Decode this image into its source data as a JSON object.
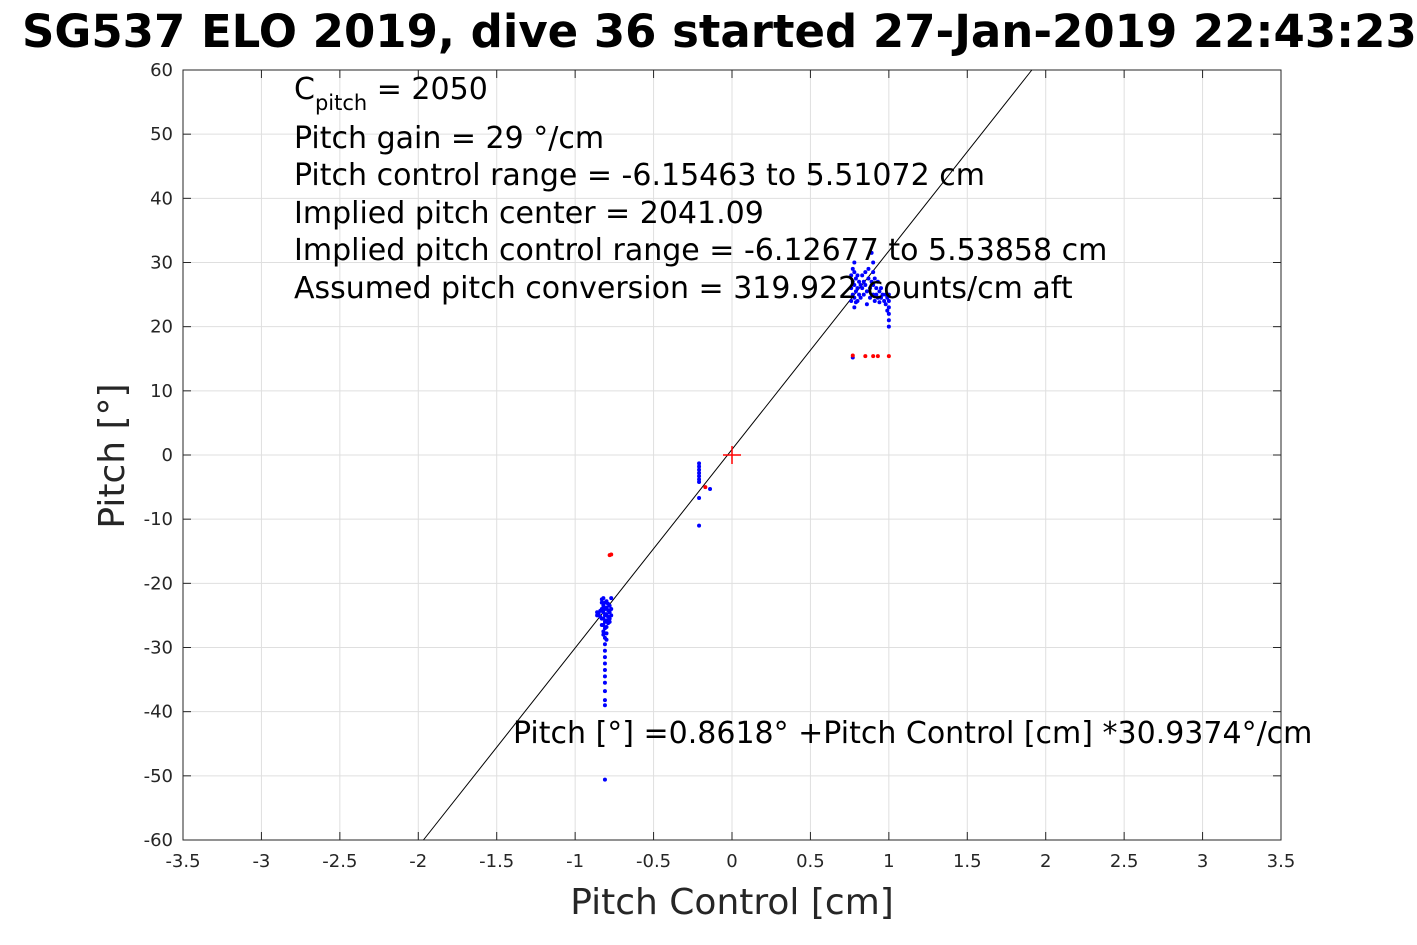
{
  "chart_data": {
    "type": "scatter",
    "title": "SG537 ELO 2019, dive 36 started 27-Jan-2019 22:43:23",
    "xlabel": "Pitch Control [cm]",
    "ylabel": "Pitch [°]",
    "xlim": [
      -3.5,
      3.5
    ],
    "ylim": [
      -60,
      60
    ],
    "xticks": [
      -3.5,
      -3,
      -2.5,
      -2,
      -1.5,
      -1,
      -0.5,
      0,
      0.5,
      1,
      1.5,
      2,
      2.5,
      3,
      3.5
    ],
    "yticks": [
      -60,
      -50,
      -40,
      -30,
      -20,
      -10,
      0,
      10,
      20,
      30,
      40,
      50,
      60
    ],
    "xtick_labels": [
      "-3.5",
      "-3",
      "-2.5",
      "-2",
      "-1.5",
      "-1",
      "-0.5",
      "0",
      "0.5",
      "1",
      "1.5",
      "2",
      "2.5",
      "3",
      "3.5"
    ],
    "ytick_labels": [
      "-60",
      "-50",
      "-40",
      "-30",
      "-20",
      "-10",
      "0",
      "10",
      "20",
      "30",
      "40",
      "50",
      "60"
    ],
    "grid": true,
    "fit_line": {
      "intercept": 0.8618,
      "slope": 30.9374,
      "color": "#000000"
    },
    "center_marker": {
      "x": 0,
      "y": 0,
      "color": "#ff0000",
      "shape": "plus"
    },
    "series": [
      {
        "color": "#0000ff",
        "points": [
          [
            -0.86,
            -24.5
          ],
          [
            -0.86,
            -25.0
          ],
          [
            -0.85,
            -24.8
          ],
          [
            -0.84,
            -24.3
          ],
          [
            -0.84,
            -25.2
          ],
          [
            -0.83,
            -23.0
          ],
          [
            -0.83,
            -24.0
          ],
          [
            -0.83,
            -25.5
          ],
          [
            -0.83,
            -26.5
          ],
          [
            -0.83,
            -22.5
          ],
          [
            -0.82,
            -23.5
          ],
          [
            -0.82,
            -24.5
          ],
          [
            -0.82,
            -25.5
          ],
          [
            -0.82,
            -26.5
          ],
          [
            -0.82,
            -27.5
          ],
          [
            -0.82,
            -28.0
          ],
          [
            -0.82,
            -22.3
          ],
          [
            -0.81,
            -23.0
          ],
          [
            -0.81,
            -24.0
          ],
          [
            -0.81,
            -25.0
          ],
          [
            -0.81,
            -26.0
          ],
          [
            -0.81,
            -27.0
          ],
          [
            -0.81,
            -28.5
          ],
          [
            -0.81,
            -29.5
          ],
          [
            -0.81,
            -30.5
          ],
          [
            -0.81,
            -31.5
          ],
          [
            -0.81,
            -32.5
          ],
          [
            -0.81,
            -33.5
          ],
          [
            -0.81,
            -34.5
          ],
          [
            -0.81,
            -35.5
          ],
          [
            -0.81,
            -36.8
          ],
          [
            -0.81,
            -38.2
          ],
          [
            -0.81,
            -39.0
          ],
          [
            -0.81,
            -50.6
          ],
          [
            -0.8,
            -22.8
          ],
          [
            -0.8,
            -23.8
          ],
          [
            -0.8,
            -24.8
          ],
          [
            -0.8,
            -25.8
          ],
          [
            -0.8,
            -26.8
          ],
          [
            -0.8,
            -27.8
          ],
          [
            -0.8,
            -28.8
          ],
          [
            -0.79,
            -24.2
          ],
          [
            -0.79,
            -25.2
          ],
          [
            -0.79,
            -26.2
          ],
          [
            -0.79,
            -23.2
          ],
          [
            -0.78,
            -24.5
          ],
          [
            -0.78,
            -25.5
          ],
          [
            -0.78,
            -23.5
          ],
          [
            -0.78,
            -26.0
          ],
          [
            -0.77,
            -22.3
          ],
          [
            -0.77,
            -24.0
          ],
          [
            -0.77,
            -25.0
          ],
          [
            -0.21,
            -1.3
          ],
          [
            -0.21,
            -1.8
          ],
          [
            -0.21,
            -2.3
          ],
          [
            -0.21,
            -2.8
          ],
          [
            -0.21,
            -3.3
          ],
          [
            -0.21,
            -3.8
          ],
          [
            -0.21,
            -4.2
          ],
          [
            -0.21,
            -6.7
          ],
          [
            -0.21,
            -11.0
          ],
          [
            -0.14,
            -5.3
          ],
          [
            0.76,
            24.0
          ],
          [
            0.76,
            26.0
          ],
          [
            0.76,
            28.0
          ],
          [
            0.77,
            29.0
          ],
          [
            0.77,
            27.0
          ],
          [
            0.77,
            25.0
          ],
          [
            0.77,
            15.2
          ],
          [
            0.78,
            30.0
          ],
          [
            0.78,
            28.5
          ],
          [
            0.78,
            26.5
          ],
          [
            0.78,
            24.5
          ],
          [
            0.78,
            23.0
          ],
          [
            0.79,
            27.5
          ],
          [
            0.79,
            25.5
          ],
          [
            0.79,
            23.8
          ],
          [
            0.8,
            28.0
          ],
          [
            0.8,
            26.0
          ],
          [
            0.8,
            24.0
          ],
          [
            0.81,
            27.0
          ],
          [
            0.81,
            25.0
          ],
          [
            0.82,
            26.5
          ],
          [
            0.82,
            24.5
          ],
          [
            0.83,
            28.0
          ],
          [
            0.83,
            26.0
          ],
          [
            0.84,
            25.0
          ],
          [
            0.84,
            27.0
          ],
          [
            0.85,
            28.5
          ],
          [
            0.85,
            26.5
          ],
          [
            0.86,
            25.5
          ],
          [
            0.86,
            23.5
          ],
          [
            0.87,
            27.5
          ],
          [
            0.87,
            29.0
          ],
          [
            0.88,
            26.0
          ],
          [
            0.88,
            24.5
          ],
          [
            0.89,
            27.0
          ],
          [
            0.89,
            31.5
          ],
          [
            0.9,
            30.0
          ],
          [
            0.9,
            28.5
          ],
          [
            0.9,
            26.5
          ],
          [
            0.9,
            25.0
          ],
          [
            0.91,
            27.5
          ],
          [
            0.91,
            24.0
          ],
          [
            0.92,
            26.0
          ],
          [
            0.92,
            25.0
          ],
          [
            0.93,
            27.0
          ],
          [
            0.93,
            24.5
          ],
          [
            0.94,
            25.5
          ],
          [
            0.94,
            23.8
          ],
          [
            0.95,
            26.0
          ],
          [
            0.95,
            24.5
          ],
          [
            0.96,
            25.0
          ],
          [
            0.97,
            24.0
          ],
          [
            0.98,
            25.0
          ],
          [
            0.98,
            23.5
          ],
          [
            0.99,
            24.5
          ],
          [
            0.99,
            22.5
          ],
          [
            1.0,
            24.0
          ],
          [
            1.0,
            23.0
          ],
          [
            1.0,
            22.0
          ],
          [
            1.0,
            21.0
          ],
          [
            1.0,
            20.0
          ],
          [
            1.0,
            25.0
          ]
        ]
      },
      {
        "color": "#ff0000",
        "points": [
          [
            -0.78,
            -15.6
          ],
          [
            -0.77,
            -15.5
          ],
          [
            -0.17,
            -5.0
          ],
          [
            0.77,
            15.5
          ],
          [
            0.85,
            15.4
          ],
          [
            0.9,
            15.4
          ],
          [
            0.93,
            15.4
          ],
          [
            1.0,
            15.4
          ]
        ]
      }
    ],
    "annotations": {
      "cpitch_prefix": "C",
      "cpitch_sub": "pitch",
      "cpitch_suffix": " = 2050",
      "pitch_gain": "Pitch gain = 29 °/cm",
      "pitch_control_range": "Pitch control range = -6.15463 to 5.51072 cm",
      "implied_center": "Implied pitch center = 2041.09",
      "implied_range": "Implied pitch control range = -6.12677 to 5.53858 cm",
      "assumed_conversion": "Assumed pitch conversion = 319.922 counts/cm aft",
      "fit_equation": "Pitch [°] =0.8618° +Pitch Control [cm] *30.9374°/cm"
    }
  }
}
